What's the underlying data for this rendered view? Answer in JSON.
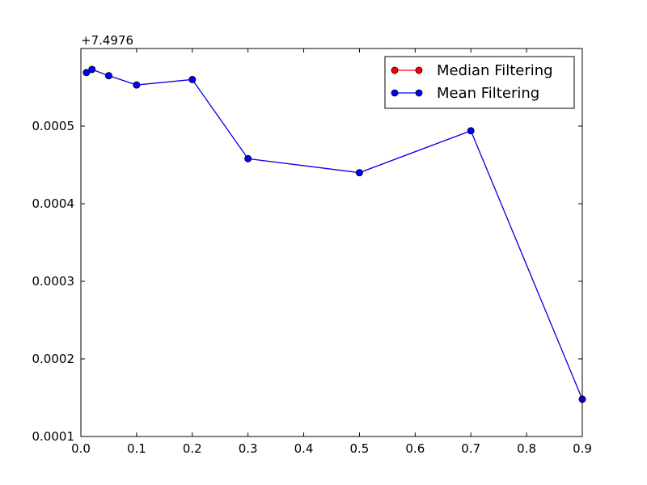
{
  "chart_data": {
    "type": "line",
    "title": "",
    "xlabel": "",
    "ylabel": "",
    "y_offset_label": "+7.4976",
    "xlim": [
      0.0,
      0.9
    ],
    "ylim": [
      0.0001,
      0.0006
    ],
    "x_ticks": [
      0.0,
      0.1,
      0.2,
      0.3,
      0.4,
      0.5,
      0.6,
      0.7,
      0.8,
      0.9
    ],
    "x_tick_labels": [
      "0.0",
      "0.1",
      "0.2",
      "0.3",
      "0.4",
      "0.5",
      "0.6",
      "0.7",
      "0.8",
      "0.9"
    ],
    "y_ticks": [
      0.0001,
      0.0002,
      0.0003,
      0.0004,
      0.0005
    ],
    "y_tick_labels": [
      "0.0001",
      "0.0002",
      "0.0003",
      "0.0004",
      "0.0005"
    ],
    "grid": false,
    "legend_position": "top-right",
    "x": [
      0.01,
      0.02,
      0.05,
      0.1,
      0.2,
      0.3,
      0.5,
      0.7,
      0.9
    ],
    "series": [
      {
        "name": "Median Filtering",
        "color": "#ff0000",
        "values": [
          0.000569,
          0.000573,
          0.000565,
          0.000553,
          0.00056,
          0.000458,
          0.00044,
          0.000494,
          0.000148
        ]
      },
      {
        "name": "Mean Filtering",
        "color": "#0000ff",
        "values": [
          0.000569,
          0.000573,
          0.000565,
          0.000553,
          0.00056,
          0.000458,
          0.00044,
          0.000494,
          0.000148
        ]
      }
    ]
  }
}
